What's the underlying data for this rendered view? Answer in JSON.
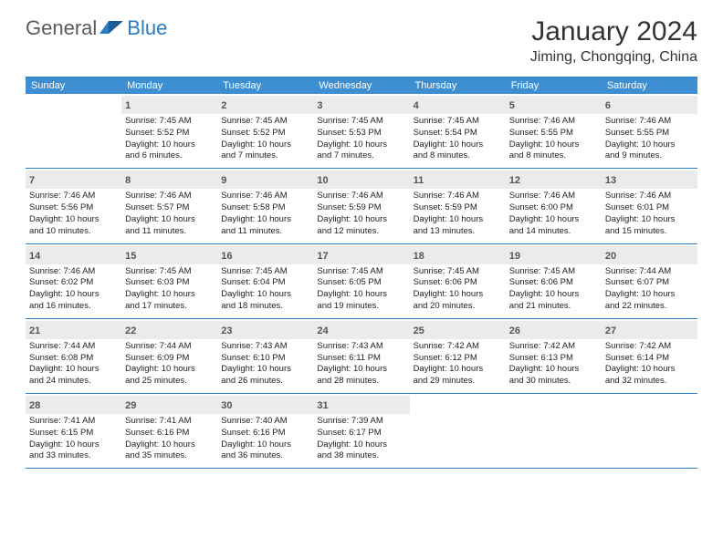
{
  "brand": {
    "part1": "General",
    "part2": "Blue"
  },
  "title": "January 2024",
  "location": "Jiming, Chongqing, China",
  "header_bg": "#3d8fd1",
  "border_color": "#2d7bc0",
  "daynum_bg": "#ebebeb",
  "weekdays": [
    "Sunday",
    "Monday",
    "Tuesday",
    "Wednesday",
    "Thursday",
    "Friday",
    "Saturday"
  ],
  "weeks": [
    [
      null,
      {
        "n": "1",
        "sr": "Sunrise: 7:45 AM",
        "ss": "Sunset: 5:52 PM",
        "d1": "Daylight: 10 hours",
        "d2": "and 6 minutes."
      },
      {
        "n": "2",
        "sr": "Sunrise: 7:45 AM",
        "ss": "Sunset: 5:52 PM",
        "d1": "Daylight: 10 hours",
        "d2": "and 7 minutes."
      },
      {
        "n": "3",
        "sr": "Sunrise: 7:45 AM",
        "ss": "Sunset: 5:53 PM",
        "d1": "Daylight: 10 hours",
        "d2": "and 7 minutes."
      },
      {
        "n": "4",
        "sr": "Sunrise: 7:45 AM",
        "ss": "Sunset: 5:54 PM",
        "d1": "Daylight: 10 hours",
        "d2": "and 8 minutes."
      },
      {
        "n": "5",
        "sr": "Sunrise: 7:46 AM",
        "ss": "Sunset: 5:55 PM",
        "d1": "Daylight: 10 hours",
        "d2": "and 8 minutes."
      },
      {
        "n": "6",
        "sr": "Sunrise: 7:46 AM",
        "ss": "Sunset: 5:55 PM",
        "d1": "Daylight: 10 hours",
        "d2": "and 9 minutes."
      }
    ],
    [
      {
        "n": "7",
        "sr": "Sunrise: 7:46 AM",
        "ss": "Sunset: 5:56 PM",
        "d1": "Daylight: 10 hours",
        "d2": "and 10 minutes."
      },
      {
        "n": "8",
        "sr": "Sunrise: 7:46 AM",
        "ss": "Sunset: 5:57 PM",
        "d1": "Daylight: 10 hours",
        "d2": "and 11 minutes."
      },
      {
        "n": "9",
        "sr": "Sunrise: 7:46 AM",
        "ss": "Sunset: 5:58 PM",
        "d1": "Daylight: 10 hours",
        "d2": "and 11 minutes."
      },
      {
        "n": "10",
        "sr": "Sunrise: 7:46 AM",
        "ss": "Sunset: 5:59 PM",
        "d1": "Daylight: 10 hours",
        "d2": "and 12 minutes."
      },
      {
        "n": "11",
        "sr": "Sunrise: 7:46 AM",
        "ss": "Sunset: 5:59 PM",
        "d1": "Daylight: 10 hours",
        "d2": "and 13 minutes."
      },
      {
        "n": "12",
        "sr": "Sunrise: 7:46 AM",
        "ss": "Sunset: 6:00 PM",
        "d1": "Daylight: 10 hours",
        "d2": "and 14 minutes."
      },
      {
        "n": "13",
        "sr": "Sunrise: 7:46 AM",
        "ss": "Sunset: 6:01 PM",
        "d1": "Daylight: 10 hours",
        "d2": "and 15 minutes."
      }
    ],
    [
      {
        "n": "14",
        "sr": "Sunrise: 7:46 AM",
        "ss": "Sunset: 6:02 PM",
        "d1": "Daylight: 10 hours",
        "d2": "and 16 minutes."
      },
      {
        "n": "15",
        "sr": "Sunrise: 7:45 AM",
        "ss": "Sunset: 6:03 PM",
        "d1": "Daylight: 10 hours",
        "d2": "and 17 minutes."
      },
      {
        "n": "16",
        "sr": "Sunrise: 7:45 AM",
        "ss": "Sunset: 6:04 PM",
        "d1": "Daylight: 10 hours",
        "d2": "and 18 minutes."
      },
      {
        "n": "17",
        "sr": "Sunrise: 7:45 AM",
        "ss": "Sunset: 6:05 PM",
        "d1": "Daylight: 10 hours",
        "d2": "and 19 minutes."
      },
      {
        "n": "18",
        "sr": "Sunrise: 7:45 AM",
        "ss": "Sunset: 6:06 PM",
        "d1": "Daylight: 10 hours",
        "d2": "and 20 minutes."
      },
      {
        "n": "19",
        "sr": "Sunrise: 7:45 AM",
        "ss": "Sunset: 6:06 PM",
        "d1": "Daylight: 10 hours",
        "d2": "and 21 minutes."
      },
      {
        "n": "20",
        "sr": "Sunrise: 7:44 AM",
        "ss": "Sunset: 6:07 PM",
        "d1": "Daylight: 10 hours",
        "d2": "and 22 minutes."
      }
    ],
    [
      {
        "n": "21",
        "sr": "Sunrise: 7:44 AM",
        "ss": "Sunset: 6:08 PM",
        "d1": "Daylight: 10 hours",
        "d2": "and 24 minutes."
      },
      {
        "n": "22",
        "sr": "Sunrise: 7:44 AM",
        "ss": "Sunset: 6:09 PM",
        "d1": "Daylight: 10 hours",
        "d2": "and 25 minutes."
      },
      {
        "n": "23",
        "sr": "Sunrise: 7:43 AM",
        "ss": "Sunset: 6:10 PM",
        "d1": "Daylight: 10 hours",
        "d2": "and 26 minutes."
      },
      {
        "n": "24",
        "sr": "Sunrise: 7:43 AM",
        "ss": "Sunset: 6:11 PM",
        "d1": "Daylight: 10 hours",
        "d2": "and 28 minutes."
      },
      {
        "n": "25",
        "sr": "Sunrise: 7:42 AM",
        "ss": "Sunset: 6:12 PM",
        "d1": "Daylight: 10 hours",
        "d2": "and 29 minutes."
      },
      {
        "n": "26",
        "sr": "Sunrise: 7:42 AM",
        "ss": "Sunset: 6:13 PM",
        "d1": "Daylight: 10 hours",
        "d2": "and 30 minutes."
      },
      {
        "n": "27",
        "sr": "Sunrise: 7:42 AM",
        "ss": "Sunset: 6:14 PM",
        "d1": "Daylight: 10 hours",
        "d2": "and 32 minutes."
      }
    ],
    [
      {
        "n": "28",
        "sr": "Sunrise: 7:41 AM",
        "ss": "Sunset: 6:15 PM",
        "d1": "Daylight: 10 hours",
        "d2": "and 33 minutes."
      },
      {
        "n": "29",
        "sr": "Sunrise: 7:41 AM",
        "ss": "Sunset: 6:16 PM",
        "d1": "Daylight: 10 hours",
        "d2": "and 35 minutes."
      },
      {
        "n": "30",
        "sr": "Sunrise: 7:40 AM",
        "ss": "Sunset: 6:16 PM",
        "d1": "Daylight: 10 hours",
        "d2": "and 36 minutes."
      },
      {
        "n": "31",
        "sr": "Sunrise: 7:39 AM",
        "ss": "Sunset: 6:17 PM",
        "d1": "Daylight: 10 hours",
        "d2": "and 38 minutes."
      },
      null,
      null,
      null
    ]
  ]
}
